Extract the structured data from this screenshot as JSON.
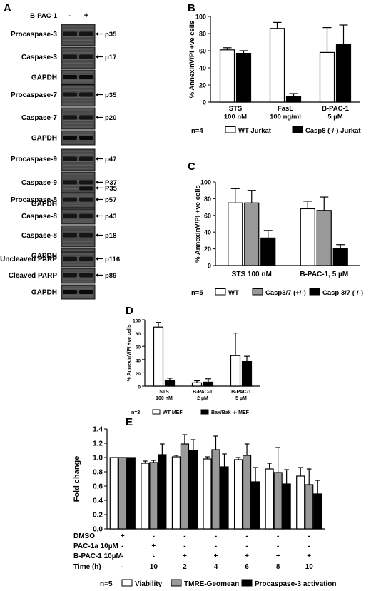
{
  "panel_letters": [
    "A",
    "B",
    "C",
    "D",
    "E"
  ],
  "blot": {
    "treatment_label": "B-PAC-1",
    "lanes": [
      "-",
      "+"
    ],
    "groups": [
      {
        "rows": [
          {
            "label": "Procaspase-3",
            "band": "p35",
            "kind": "tall"
          },
          {
            "label": "Caspase-3",
            "band": "p17",
            "kind": "tall"
          },
          {
            "label": "GAPDH",
            "band": "",
            "kind": "gapdh"
          }
        ]
      },
      {
        "rows": [
          {
            "label": "Procaspase-7",
            "band": "p35",
            "kind": "tall"
          },
          {
            "label": "Caspase-7",
            "band": "p20",
            "kind": "tall"
          },
          {
            "label": "GAPDH",
            "band": "",
            "kind": "gapdh"
          }
        ]
      },
      {
        "rows": [
          {
            "label": "Procaspase-9",
            "band": "p47",
            "kind": "tall"
          },
          {
            "label": "Caspase-9",
            "band": "P37",
            "kind": "double",
            "band2": "P35"
          },
          {
            "label": "GAPDH",
            "band": "",
            "kind": "gapdh"
          }
        ]
      },
      {
        "rows": [
          {
            "label": "Procaspase-8",
            "band": "p57",
            "kind": "short"
          },
          {
            "label": "Caspase-8",
            "band": "p43",
            "kind": "short"
          },
          {
            "label": "Caspase-8",
            "band": "p18",
            "kind": "tall"
          },
          {
            "label": "GAPDH",
            "band": "",
            "kind": "gapdh"
          }
        ]
      },
      {
        "rows": [
          {
            "label": "Uncleaved PARP",
            "band": "p116",
            "kind": "short"
          },
          {
            "label": "Cleaved PARP",
            "band": "p89",
            "kind": "short"
          },
          {
            "label": "GAPDH",
            "band": "",
            "kind": "gapdh"
          }
        ]
      }
    ]
  },
  "chart_data": [
    {
      "panel": "B",
      "type": "bar",
      "categories": [
        "STS\n100 nM",
        "FasL\n100 ng/ml",
        "B-PAC-1\n5 µM"
      ],
      "ylabel": "% AnnexinV/PI +ve cells",
      "ylim": [
        0,
        100
      ],
      "yticks": [
        0,
        20,
        40,
        60,
        80,
        100
      ],
      "n_label": "n=4",
      "series": [
        {
          "name": "WT Jurkat",
          "color": "#ffffff",
          "values": [
            61,
            86,
            58
          ],
          "errors": [
            2.5,
            7,
            29
          ]
        },
        {
          "name": "Casp8 (-/-) Jurkat",
          "color": "#000000",
          "values": [
            57,
            7,
            67
          ],
          "errors": [
            3,
            3,
            23
          ]
        }
      ]
    },
    {
      "panel": "C",
      "type": "bar",
      "categories": [
        "STS 100 nM",
        "B-PAC-1, 5 µM"
      ],
      "ylabel": "% AnnexinV/PI +ve cells",
      "ylim": [
        0,
        100
      ],
      "yticks": [
        0,
        20,
        40,
        60,
        80,
        100
      ],
      "n_label": "n=5",
      "series": [
        {
          "name": "WT",
          "color": "#ffffff",
          "values": [
            75,
            68
          ],
          "errors": [
            17,
            9
          ]
        },
        {
          "name": "Casp3/7 (+/-)",
          "color": "#999999",
          "values": [
            75,
            66
          ],
          "errors": [
            15,
            16
          ]
        },
        {
          "name": "Casp 3/7 (-/-)",
          "color": "#000000",
          "values": [
            33,
            20
          ],
          "errors": [
            9,
            5
          ]
        }
      ]
    },
    {
      "panel": "D",
      "type": "bar",
      "categories": [
        "STS\n100 nM",
        "B-PAC-1\n2 µM",
        "B-PAC-1\n5 µM"
      ],
      "ylabel": "% AnnexinV/PI +ve cells",
      "ylim": [
        0,
        100
      ],
      "yticks": [
        0,
        20,
        40,
        60,
        80,
        100
      ],
      "n_label": "n=3",
      "series": [
        {
          "name": "WT MEF",
          "color": "#ffffff",
          "values": [
            89,
            5,
            46
          ],
          "errors": [
            7,
            3,
            34
          ]
        },
        {
          "name": "Bax/Bak -/- MEF",
          "color": "#000000",
          "values": [
            8,
            6,
            37
          ],
          "errors": [
            4,
            5,
            8
          ]
        }
      ]
    },
    {
      "panel": "E",
      "type": "bar",
      "categories": [
        "1",
        "2",
        "3",
        "4",
        "5",
        "6",
        "7"
      ],
      "ylabel": "Fold change",
      "ylim": [
        0,
        1.4
      ],
      "yticks": [
        0,
        0.2,
        0.4,
        0.6,
        0.8,
        1.0,
        1.2,
        1.4
      ],
      "ytick_labels": [
        "0.0",
        "0.2",
        "0.4",
        "0.6",
        "0.8",
        "1.0",
        "1.2",
        "1.4"
      ],
      "n_label": "n=5",
      "series": [
        {
          "name": "Viability",
          "color": "#ffffff",
          "values": [
            1.0,
            0.92,
            1.01,
            0.98,
            0.97,
            0.84,
            0.74
          ],
          "errors": [
            0,
            0.03,
            0.02,
            0.03,
            0.03,
            0.08,
            0.12
          ]
        },
        {
          "name": "TMRE-Geomean",
          "color": "#999999",
          "values": [
            1.0,
            0.93,
            1.19,
            1.11,
            1.03,
            0.79,
            0.62
          ],
          "errors": [
            0,
            0.03,
            0.13,
            0.19,
            0.16,
            0.35,
            0.22
          ]
        },
        {
          "name": "Procaspase-3 activation",
          "color": "#000000",
          "values": [
            1.0,
            1.04,
            1.1,
            0.87,
            0.66,
            0.63,
            0.49
          ],
          "errors": [
            0,
            0.15,
            0.15,
            0.18,
            0.2,
            0.2,
            0.19
          ]
        }
      ],
      "condition_table": {
        "rows": [
          {
            "label": "DMSO",
            "values": [
              "+",
              "-",
              "-",
              "-",
              "-",
              "-",
              "-"
            ]
          },
          {
            "label": "PAC-1a 10µM",
            "values": [
              "-",
              "+",
              "-",
              "-",
              "-",
              "-",
              "-"
            ]
          },
          {
            "label": "B-PAC-1 10µM",
            "values": [
              "-",
              "-",
              "+",
              "+",
              "+",
              "+",
              "+"
            ]
          },
          {
            "label": "Time (h)",
            "values": [
              "-",
              "10",
              "2",
              "4",
              "6",
              "8",
              "10"
            ]
          }
        ]
      }
    }
  ]
}
